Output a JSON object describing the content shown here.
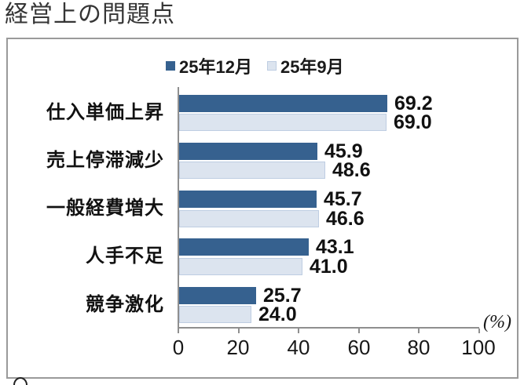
{
  "page": {
    "title": "経営上の問題点"
  },
  "chart_data": {
    "type": "bar",
    "orientation": "horizontal",
    "title": "経営上の問題点",
    "categories": [
      "仕入単価上昇",
      "売上停滞減少",
      "一般経費増大",
      "人手不足",
      "競争激化"
    ],
    "series": [
      {
        "name": "25年12月",
        "color": "#36618F",
        "values": [
          69.2,
          45.9,
          45.7,
          43.1,
          25.7
        ]
      },
      {
        "name": "25年9月",
        "color": "#DCE4EF",
        "values": [
          69.0,
          48.6,
          46.6,
          41.0,
          24.0
        ]
      }
    ],
    "xlabel": "(%)",
    "xlim": [
      0,
      100
    ],
    "xticks": [
      "0",
      "20",
      "40",
      "60",
      "80",
      "100"
    ],
    "grid": false,
    "legend_position": "top",
    "value_labels_shown": true
  },
  "colors": {
    "bar_dark": "#36618F",
    "bar_light": "#DCE4EF",
    "bar_light_border": "#BECDE2",
    "axis": "#8f8f8f",
    "frame_border": "#9a9a9a",
    "text": "#1a1a1a"
  }
}
